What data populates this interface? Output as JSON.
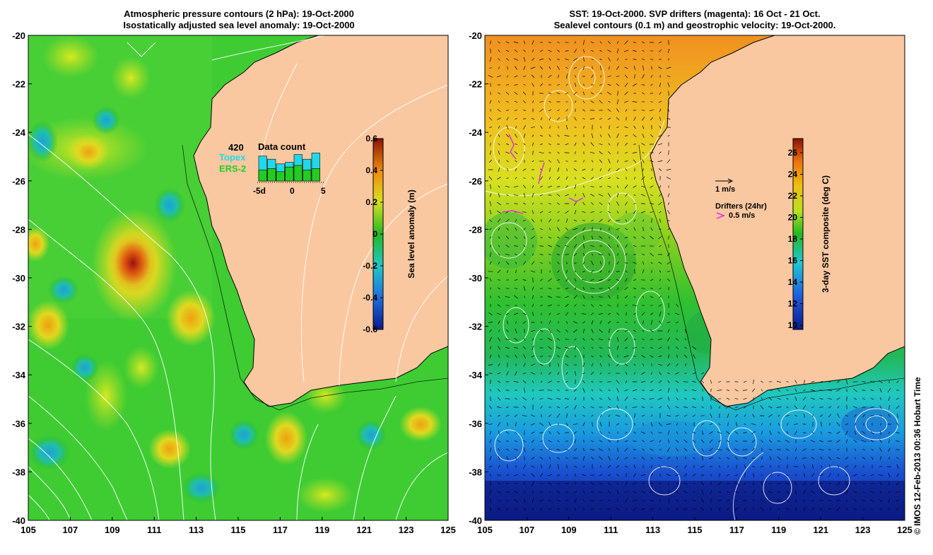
{
  "left_panel": {
    "title_line1": "Atmospheric pressure contours (2 hPa): 19-Oct-2000",
    "title_line2": "Isostatically adjusted sea level anomaly: 19-Oct-2000",
    "x_ticks": [
      "105",
      "107",
      "109",
      "111",
      "113",
      "115",
      "117",
      "119",
      "121",
      "123",
      "125"
    ],
    "y_ticks": [
      "-20",
      "-22",
      "-24",
      "-26",
      "-28",
      "-30",
      "-32",
      "-34",
      "-36",
      "-38",
      "-40"
    ],
    "colorbar": {
      "label": "Sea level anomaly (m)",
      "ticks": [
        "0.6",
        "0.4",
        "0.2",
        "0",
        "-0.2",
        "-0.4",
        "-0.6"
      ]
    },
    "data_count": {
      "count": "420",
      "title": "Data count",
      "series": [
        {
          "name": "Topex",
          "color": "#22d8e8"
        },
        {
          "name": "ERS-2",
          "color": "#22cc22"
        }
      ],
      "axis_labels": [
        "-5d",
        "0",
        "5"
      ],
      "topex_values": [
        0.8,
        0.7,
        0.55,
        0.6,
        0.85,
        0.7,
        0.9
      ],
      "ers_values": [
        0.35,
        0.4,
        0.3,
        0.45,
        0.5,
        0.35,
        0.4
      ]
    },
    "colors": {
      "land": "#fac8a0",
      "ocean": "#3fcc33",
      "contour": "#ffffff"
    }
  },
  "right_panel": {
    "title_line1": "SST: 19-Oct-2000. SVP drifters (magenta): 16 Oct - 21 Oct.",
    "title_line2": "Sealevel contours (0.1 m) and geostrophic velocity: 19-Oct-2000.",
    "x_ticks": [
      "105",
      "107",
      "109",
      "111",
      "113",
      "115",
      "117",
      "119",
      "121",
      "123",
      "125"
    ],
    "y_ticks": [
      "-20",
      "-22",
      "-24",
      "-26",
      "-28",
      "-30",
      "-32",
      "-34",
      "-36",
      "-38",
      "-40"
    ],
    "colorbar": {
      "label": "3-day SST composite (deg C)",
      "ticks": [
        "26",
        "24",
        "22",
        "20",
        "18",
        "16",
        "14",
        "12",
        "10"
      ]
    },
    "velocity_legend": "1 m/s",
    "drifter_legend_title": "Drifters (24hr)",
    "drifter_legend_value": "0.5 m/s",
    "colors": {
      "land": "#fac8a0",
      "drifter": "#e030e0"
    }
  },
  "footer_stamp": "© IMOS 12-Feb-2013 00:36 Hobart Time"
}
